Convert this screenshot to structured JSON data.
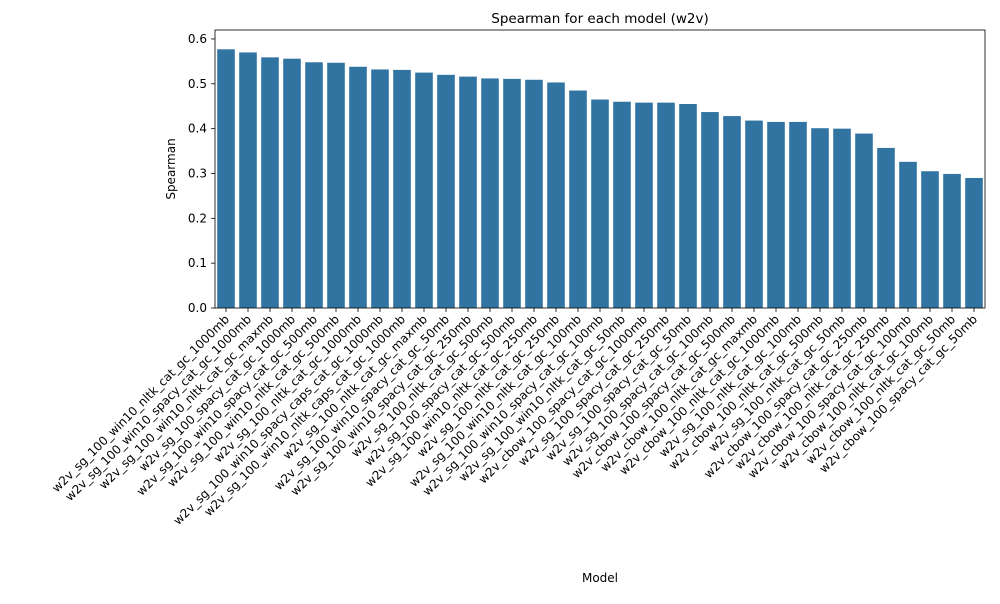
{
  "chart_data": {
    "type": "bar",
    "title": "Spearman for each model (w2v)",
    "x_label": "Model",
    "y_label": "Spearman",
    "categories": [
      "w2v_sg_100_win10_nltk_cat_gc_1000mb",
      "w2v_sg_100_win10_spacy_cat_gc_1000mb",
      "w2v_sg_100_win10_nltk_cat_gc_maxmb",
      "w2v_sg_100_spacy_cat_gc_1000mb",
      "w2v_sg_100_win10_spacy_cat_gc_500mb",
      "w2v_sg_100_win10_nltk_cat_gc_500mb",
      "w2v_sg_100_nltk_cat_gc_1000mb",
      "w2v_sg_100_win10_spacy_caps_cat_gc_1000mb",
      "w2v_sg_100_win10_nltk_caps_cat_gc_1000mb",
      "w2v_sg_100_nltk_cat_gc_maxmb",
      "w2v_sg_100_win10_spacy_cat_gc_50mb",
      "w2v_sg_100_win10_spacy_cat_gc_250mb",
      "w2v_sg_100_nltk_cat_gc_500mb",
      "w2v_sg_100_spacy_cat_gc_500mb",
      "w2v_sg_100_win10_nltk_cat_gc_250mb",
      "w2v_sg_100_nltk_cat_gc_250mb",
      "w2v_sg_100_win10_nltk_cat_gc_100mb",
      "w2v_sg_100_win10_spacy_cat_gc_100mb",
      "w2v_sg_100_win10_nltk_cat_gc_50mb",
      "w2v_cbow_100_spacy_cat_gc_1000mb",
      "w2v_sg_100_spacy_cat_gc_250mb",
      "w2v_sg_100_spacy_cat_gc_50mb",
      "w2v_sg_100_spacy_cat_gc_100mb",
      "w2v_cbow_100_spacy_cat_gc_500mb",
      "w2v_cbow_100_nltk_cat_gc_maxmb",
      "w2v_cbow_100_nltk_cat_gc_1000mb",
      "w2v_sg_100_nltk_cat_gc_100mb",
      "w2v_cbow_100_nltk_cat_gc_500mb",
      "w2v_sg_100_nltk_cat_gc_50mb",
      "w2v_cbow_100_spacy_cat_gc_250mb",
      "w2v_cbow_100_nltk_cat_gc_250mb",
      "w2v_cbow_100_spacy_cat_gc_100mb",
      "w2v_cbow_100_nltk_cat_gc_100mb",
      "w2v_cbow_100_nltk_cat_gc_50mb",
      "w2v_cbow_100_spacy_cat_gc_50mb"
    ],
    "values": [
      0.577,
      0.57,
      0.559,
      0.556,
      0.548,
      0.547,
      0.538,
      0.532,
      0.531,
      0.525,
      0.52,
      0.516,
      0.512,
      0.511,
      0.509,
      0.503,
      0.485,
      0.465,
      0.46,
      0.458,
      0.458,
      0.455,
      0.437,
      0.428,
      0.418,
      0.415,
      0.415,
      0.401,
      0.4,
      0.389,
      0.357,
      0.326,
      0.305,
      0.299,
      0.29
    ],
    "color": "#3274a1",
    "ylim": [
      0,
      0.62
    ],
    "yticks": [
      {
        "value": 0,
        "label": "0.0"
      },
      0.1,
      0.2,
      0.3,
      0.4,
      0.5,
      0.6
    ],
    "grid": false
  }
}
